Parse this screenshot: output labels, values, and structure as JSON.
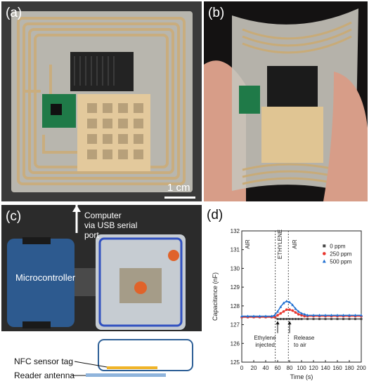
{
  "panels": {
    "a": {
      "label": "(a)",
      "scale_bar": "1 cm",
      "colors": {
        "background": "#3a3a3a",
        "film": "#b8b6ae",
        "trace": "#c9ad7e",
        "chip_board": "#1f7a48",
        "sensor_pad": "#e3c99c",
        "heater": "#232323"
      }
    },
    "b": {
      "label": "(b)",
      "colors": {
        "background": "#141212",
        "skin": "#d79d88",
        "film": "#c7c4bb",
        "trace": "#c8ab78"
      }
    },
    "c": {
      "label": "(c)",
      "computer_label_line1": "Computer",
      "computer_label_line2": "via USB serial",
      "computer_label_line3": "port",
      "microcontroller_label": "Microcontroller",
      "diagram_tag_label": "NFC sensor tag",
      "diagram_antenna_label": "Reader antenna",
      "colors": {
        "background": "#2b2b2b",
        "case": "#2d5a8f",
        "box": "#c6ccd2",
        "cap": "#e0632a",
        "tag": "#f0b429",
        "antenna": "#8fb4dc",
        "outline": "#2d5f96"
      }
    },
    "d": {
      "label": "(d)",
      "region_labels": [
        "AIR",
        "ETHYLENE",
        "AIR"
      ],
      "annotations": [
        {
          "line1": "Ethylene",
          "line2": "injected",
          "x": 60
        },
        {
          "line1": "Release",
          "line2": "to air",
          "x": 80
        }
      ]
    }
  },
  "chart_data": {
    "type": "line",
    "title": "",
    "xlabel": "Time (s)",
    "ylabel": "Capacitance (nF)",
    "xlim": [
      0,
      200
    ],
    "ylim": [
      125,
      132
    ],
    "xticks": [
      0,
      20,
      40,
      60,
      80,
      100,
      120,
      140,
      160,
      180,
      200
    ],
    "yticks": [
      125,
      126,
      127,
      128,
      129,
      130,
      131,
      132
    ],
    "legend_position": "top-right",
    "grid": false,
    "dividers_x": [
      56,
      78
    ],
    "series": [
      {
        "name": "0 ppm",
        "color": "#444444",
        "marker": "square",
        "x": [
          0,
          10,
          20,
          30,
          40,
          50,
          55,
          60,
          65,
          70,
          75,
          80,
          85,
          90,
          95,
          100,
          110,
          120,
          130,
          140,
          150,
          160,
          170,
          180,
          190,
          200
        ],
        "y": [
          127.4,
          127.4,
          127.4,
          127.4,
          127.4,
          127.4,
          127.4,
          127.3,
          127.3,
          127.3,
          127.3,
          127.3,
          127.3,
          127.3,
          127.3,
          127.3,
          127.3,
          127.3,
          127.3,
          127.3,
          127.3,
          127.3,
          127.3,
          127.3,
          127.3,
          127.3
        ]
      },
      {
        "name": "250 ppm",
        "color": "#e8362e",
        "marker": "circle",
        "x": [
          0,
          10,
          20,
          30,
          40,
          50,
          55,
          60,
          65,
          70,
          75,
          80,
          85,
          90,
          95,
          100,
          105,
          110,
          120,
          130,
          140,
          150,
          160,
          170,
          180,
          190,
          200
        ],
        "y": [
          127.4,
          127.4,
          127.4,
          127.4,
          127.4,
          127.4,
          127.4,
          127.5,
          127.6,
          127.7,
          127.8,
          127.8,
          127.75,
          127.65,
          127.55,
          127.5,
          127.45,
          127.45,
          127.45,
          127.45,
          127.45,
          127.45,
          127.45,
          127.45,
          127.45,
          127.45,
          127.45
        ]
      },
      {
        "name": "500 ppm",
        "color": "#1f6fd1",
        "marker": "triangle",
        "x": [
          0,
          10,
          20,
          30,
          40,
          50,
          55,
          60,
          65,
          70,
          75,
          80,
          85,
          90,
          95,
          100,
          105,
          110,
          120,
          130,
          140,
          150,
          160,
          170,
          180,
          190,
          200
        ],
        "y": [
          127.45,
          127.45,
          127.45,
          127.45,
          127.45,
          127.45,
          127.5,
          127.7,
          127.95,
          128.15,
          128.25,
          128.2,
          128.05,
          127.85,
          127.7,
          127.6,
          127.55,
          127.5,
          127.5,
          127.5,
          127.5,
          127.5,
          127.5,
          127.5,
          127.5,
          127.5,
          127.5
        ]
      }
    ]
  }
}
